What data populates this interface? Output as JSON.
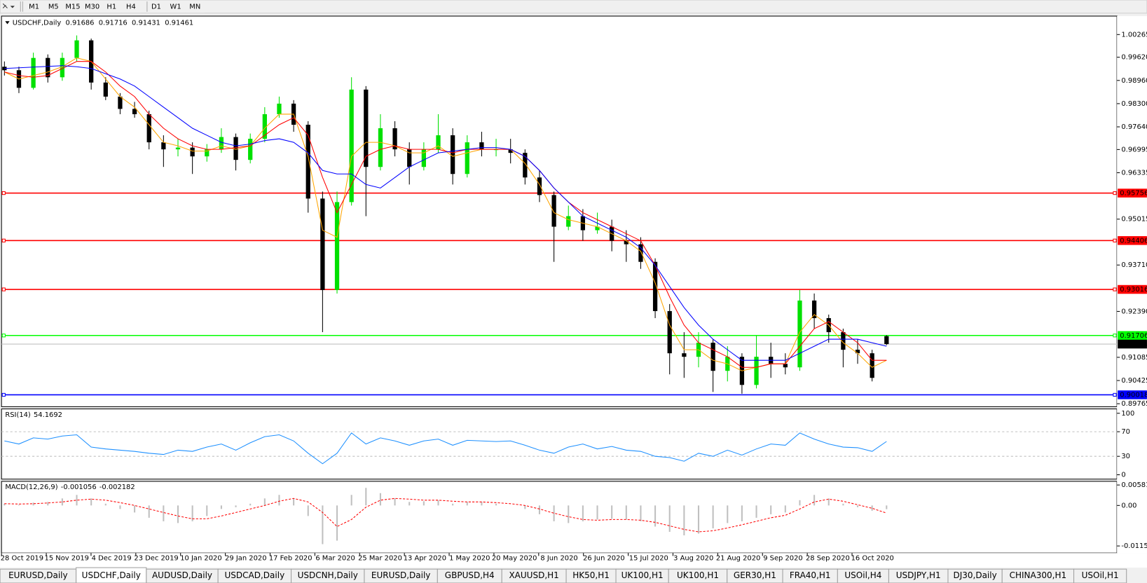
{
  "toolbar": {
    "periods": [
      "M1",
      "M5",
      "M15",
      "M30",
      "H1",
      "H4",
      "D1",
      "W1",
      "MN"
    ]
  },
  "chart_data": [
    {
      "type": "candlestick",
      "title": "USDCHF,Daily",
      "up_color": "#00e000",
      "down_color": "#000000",
      "ylim": [
        0.8968,
        1.0079
      ],
      "yticks": [
        1.00265,
        {
          "value": 0.9962,
          "label": "0.99620"
        },
        {
          "value": 0.9896,
          "label": "0.98960"
        },
        {
          "value": 0.983,
          "label": "0.98300"
        },
        {
          "value": 0.9764,
          "label": "0.97640"
        },
        0.96995,
        0.96335,
        0.95015,
        {
          "value": 0.9371,
          "label": "0.93710"
        },
        {
          "value": 0.9239,
          "label": "0.92390"
        },
        0.91085,
        0.90425,
        0.89765
      ],
      "levels": [
        {
          "value": 0.95756,
          "color": "#ff0000"
        },
        {
          "value": 0.94406,
          "color": "#ff0000"
        },
        {
          "value": 0.93016,
          "color": "#ff0000"
        },
        {
          "value": 0.91706,
          "color": "#00ff00"
        },
        {
          "value": 0.90018,
          "color": "#0000ff"
        }
      ],
      "x_labels": [
        "28 Oct 2019",
        "15 Nov 2019",
        "4 Dec 2019",
        "23 Dec 2019",
        "10 Jan 2020",
        "29 Jan 2020",
        "17 Feb 2020",
        "6 Mar 2020",
        "25 Mar 2020",
        "13 Apr 2020",
        "1 May 2020",
        "20 May 2020",
        "8 Jun 2020",
        "26 Jun 2020",
        "15 Jul 2020",
        "3 Aug 2020",
        "21 Aug 2020",
        "9 Sep 2020",
        "28 Sep 2020",
        "16 Oct 2020"
      ],
      "candles": [
        [
          0.9935,
          0.995,
          0.991,
          0.9925
        ],
        [
          0.9925,
          0.9935,
          0.986,
          0.9875
        ],
        [
          0.9875,
          0.9975,
          0.987,
          0.996
        ],
        [
          0.996,
          0.997,
          0.989,
          0.9905
        ],
        [
          0.9905,
          0.9975,
          0.9895,
          0.996
        ],
        [
          0.996,
          1.0024,
          0.995,
          1.001
        ],
        [
          1.001,
          1.0015,
          0.987,
          0.989
        ],
        [
          0.989,
          0.9905,
          0.984,
          0.985
        ],
        [
          0.985,
          0.986,
          0.98,
          0.9815
        ],
        [
          0.9815,
          0.9835,
          0.979,
          0.98
        ],
        [
          0.98,
          0.981,
          0.97,
          0.972
        ],
        [
          0.972,
          0.974,
          0.965,
          0.97
        ],
        [
          0.97,
          0.973,
          0.968,
          0.9705
        ],
        [
          0.9705,
          0.972,
          0.963,
          0.968
        ],
        [
          0.968,
          0.9715,
          0.9665,
          0.97
        ],
        [
          0.97,
          0.976,
          0.969,
          0.9735
        ],
        [
          0.9735,
          0.9745,
          0.964,
          0.967
        ],
        [
          0.967,
          0.9745,
          0.966,
          0.973
        ],
        [
          0.973,
          0.982,
          0.972,
          0.98
        ],
        [
          0.98,
          0.985,
          0.979,
          0.983
        ],
        [
          0.983,
          0.984,
          0.975,
          0.977
        ],
        [
          0.977,
          0.978,
          0.952,
          0.956
        ],
        [
          0.956,
          0.958,
          0.918,
          0.93
        ],
        [
          0.93,
          0.958,
          0.929,
          0.955
        ],
        [
          0.955,
          0.9905,
          0.954,
          0.987
        ],
        [
          0.987,
          0.988,
          0.951,
          0.965
        ],
        [
          0.965,
          0.98,
          0.964,
          0.976
        ],
        [
          0.976,
          0.978,
          0.968,
          0.97
        ],
        [
          0.97,
          0.972,
          0.96,
          0.965
        ],
        [
          0.965,
          0.972,
          0.964,
          0.97
        ],
        [
          0.97,
          0.98,
          0.969,
          0.974
        ],
        [
          0.974,
          0.976,
          0.96,
          0.963
        ],
        [
          0.963,
          0.974,
          0.962,
          0.972
        ],
        [
          0.972,
          0.975,
          0.968,
          0.97
        ],
        [
          0.97,
          0.973,
          0.968,
          0.97
        ],
        [
          0.97,
          0.973,
          0.966,
          0.969
        ],
        [
          0.969,
          0.97,
          0.96,
          0.962
        ],
        [
          0.962,
          0.964,
          0.955,
          0.957
        ],
        [
          0.957,
          0.958,
          0.938,
          0.948
        ],
        [
          0.948,
          0.954,
          0.947,
          0.951
        ],
        [
          0.951,
          0.953,
          0.944,
          0.947
        ],
        [
          0.947,
          0.952,
          0.946,
          0.948
        ],
        [
          0.948,
          0.95,
          0.941,
          0.944
        ],
        [
          0.944,
          0.947,
          0.938,
          0.943
        ],
        [
          0.943,
          0.945,
          0.936,
          0.938
        ],
        [
          0.938,
          0.939,
          0.922,
          0.924
        ],
        [
          0.924,
          0.926,
          0.906,
          0.912
        ],
        [
          0.912,
          0.918,
          0.905,
          0.911
        ],
        [
          0.911,
          0.918,
          0.908,
          0.915
        ],
        [
          0.915,
          0.916,
          0.901,
          0.907
        ],
        [
          0.907,
          0.914,
          0.904,
          0.911
        ],
        [
          0.911,
          0.912,
          0.9005,
          0.903
        ],
        [
          0.903,
          0.917,
          0.902,
          0.911
        ],
        [
          0.911,
          0.915,
          0.905,
          0.909
        ],
        [
          0.909,
          0.912,
          0.906,
          0.908
        ],
        [
          0.908,
          0.93,
          0.907,
          0.927
        ],
        [
          0.927,
          0.929,
          0.919,
          0.922
        ],
        [
          0.922,
          0.923,
          0.915,
          0.918
        ],
        [
          0.918,
          0.919,
          0.908,
          0.913
        ],
        [
          0.913,
          0.916,
          0.909,
          0.912
        ],
        [
          0.912,
          0.913,
          0.904,
          0.905
        ],
        [
          0.91686,
          0.91716,
          0.91431,
          0.91461
        ]
      ],
      "series": [
        {
          "color": "#ffa500",
          "values": [
            0.992,
            0.99,
            0.991,
            0.992,
            0.9935,
            0.996,
            0.995,
            0.99,
            0.985,
            0.982,
            0.977,
            0.972,
            0.971,
            0.9695,
            0.9695,
            0.971,
            0.97,
            0.971,
            0.976,
            0.98,
            0.98,
            0.968,
            0.947,
            0.945,
            0.968,
            0.972,
            0.972,
            0.971,
            0.969,
            0.969,
            0.971,
            0.968,
            0.969,
            0.97,
            0.97,
            0.97,
            0.966,
            0.96,
            0.952,
            0.95,
            0.949,
            0.948,
            0.946,
            0.944,
            0.941,
            0.932,
            0.92,
            0.913,
            0.913,
            0.91,
            0.909,
            0.907,
            0.908,
            0.909,
            0.909,
            0.918,
            0.923,
            0.92,
            0.915,
            0.912,
            0.908,
            0.91
          ]
        },
        {
          "color": "#ff0000",
          "values": [
            0.992,
            0.991,
            0.9905,
            0.991,
            0.993,
            0.995,
            0.995,
            0.992,
            0.988,
            0.985,
            0.98,
            0.976,
            0.973,
            0.971,
            0.97,
            0.97,
            0.9705,
            0.971,
            0.974,
            0.977,
            0.979,
            0.974,
            0.962,
            0.952,
            0.96,
            0.968,
            0.97,
            0.971,
            0.97,
            0.97,
            0.97,
            0.969,
            0.97,
            0.97,
            0.97,
            0.97,
            0.968,
            0.964,
            0.959,
            0.955,
            0.952,
            0.95,
            0.948,
            0.946,
            0.944,
            0.937,
            0.928,
            0.92,
            0.915,
            0.913,
            0.911,
            0.908,
            0.908,
            0.909,
            0.909,
            0.914,
            0.919,
            0.921,
            0.918,
            0.915,
            0.91,
            0.91
          ]
        },
        {
          "color": "#0000ff",
          "values": [
            0.993,
            0.9932,
            0.9934,
            0.9936,
            0.9938,
            0.9935,
            0.993,
            0.9915,
            0.99,
            0.988,
            0.985,
            0.982,
            0.979,
            0.976,
            0.974,
            0.972,
            0.971,
            0.9715,
            0.9725,
            0.973,
            0.972,
            0.969,
            0.964,
            0.963,
            0.963,
            0.96,
            0.959,
            0.962,
            0.965,
            0.967,
            0.969,
            0.9695,
            0.97,
            0.9705,
            0.9705,
            0.97,
            0.968,
            0.964,
            0.959,
            0.955,
            0.951,
            0.949,
            0.947,
            0.945,
            0.942,
            0.937,
            0.931,
            0.925,
            0.92,
            0.916,
            0.913,
            0.91,
            0.91,
            0.91,
            0.91,
            0.912,
            0.914,
            0.916,
            0.916,
            0.916,
            0.915,
            0.914
          ]
        }
      ]
    },
    {
      "type": "line",
      "title": "RSI(14)",
      "color": "#1e90ff",
      "ylim": [
        -7.1,
        107.1
      ],
      "yticks": [
        100,
        70,
        30,
        0
      ],
      "levels": [
        70,
        30
      ],
      "values": [
        55,
        50,
        60,
        58,
        63,
        65,
        45,
        42,
        40,
        38,
        35,
        33,
        40,
        38,
        45,
        50,
        40,
        52,
        62,
        65,
        55,
        35,
        18,
        35,
        68,
        50,
        60,
        55,
        48,
        55,
        58,
        48,
        56,
        55,
        54,
        55,
        48,
        40,
        35,
        45,
        50,
        42,
        46,
        40,
        38,
        30,
        28,
        22,
        35,
        30,
        40,
        32,
        42,
        50,
        48,
        68,
        58,
        50,
        45,
        44,
        38,
        54.1692
      ]
    },
    {
      "type": "macd",
      "title": "MACD(12,26,9)",
      "ylim": [
        -0.01352,
        0.00686
      ],
      "yticks": [
        0.005818,
        {
          "value": 0,
          "label": "0.00"
        },
        -0.011514
      ],
      "series": [
        {
          "color": "#c0c0c0",
          "values": [
            0.0005,
            0.0002,
            0.0008,
            0.001,
            0.002,
            0.003,
            0.002,
            0.0005,
            -0.001,
            -0.002,
            -0.0035,
            -0.0045,
            -0.005,
            -0.0045,
            -0.003,
            -0.001,
            -0.0005,
            0.0005,
            0.002,
            0.003,
            0.002,
            -0.003,
            -0.011,
            -0.01,
            0.003,
            0.005,
            0.0035,
            0.002,
            0.001,
            0.0012,
            0.0015,
            0.0005,
            0.001,
            0.001,
            0.0005,
            0,
            -0.001,
            -0.0025,
            -0.0045,
            -0.005,
            -0.0045,
            -0.004,
            -0.0038,
            -0.004,
            -0.0045,
            -0.006,
            -0.0075,
            -0.0085,
            -0.008,
            -0.0065,
            -0.005,
            -0.0045,
            -0.0035,
            -0.0025,
            -0.002,
            0.0015,
            0.003,
            0.002,
            0.0005,
            -0.0005,
            -0.0015,
            -0.001056
          ]
        },
        {
          "color": "#ff0000",
          "values": [
            0.0005,
            0.0004,
            0.0005,
            0.0007,
            0.001,
            0.0015,
            0.0018,
            0.0015,
            0.0008,
            0,
            -0.001,
            -0.002,
            -0.003,
            -0.0038,
            -0.0038,
            -0.003,
            -0.002,
            -0.001,
            0,
            0.0012,
            0.002,
            0.001,
            -0.002,
            -0.006,
            -0.004,
            -0.0005,
            0.0015,
            0.002,
            0.0018,
            0.0015,
            0.0015,
            0.0012,
            0.001,
            0.001,
            0.0008,
            0.0005,
            0,
            -0.001,
            -0.0022,
            -0.0032,
            -0.004,
            -0.0042,
            -0.004,
            -0.004,
            -0.0042,
            -0.0048,
            -0.0058,
            -0.0068,
            -0.0075,
            -0.0072,
            -0.0064,
            -0.0055,
            -0.0045,
            -0.0035,
            -0.0028,
            -0.001,
            0.001,
            0.0018,
            0.0012,
            0.0002,
            -0.0008,
            -0.002182
          ]
        }
      ]
    }
  ],
  "tabs": [
    "EURUSD,Daily",
    "USDCHF,Daily",
    "AUDUSD,Daily",
    "USDCAD,Daily",
    "USDCNH,Daily",
    "EURUSD,Daily",
    "GBPUSD,H4",
    "XAUUSD,H1",
    "HK50,H1",
    "UK100,H1",
    "UK100,H1",
    "GER30,H1",
    "FRA40,H1",
    "USOil,H4",
    "USDJPY,H1",
    "DJ30,Daily",
    "CHINA300,H1",
    "USOil,H1"
  ],
  "active_tab": 1
}
